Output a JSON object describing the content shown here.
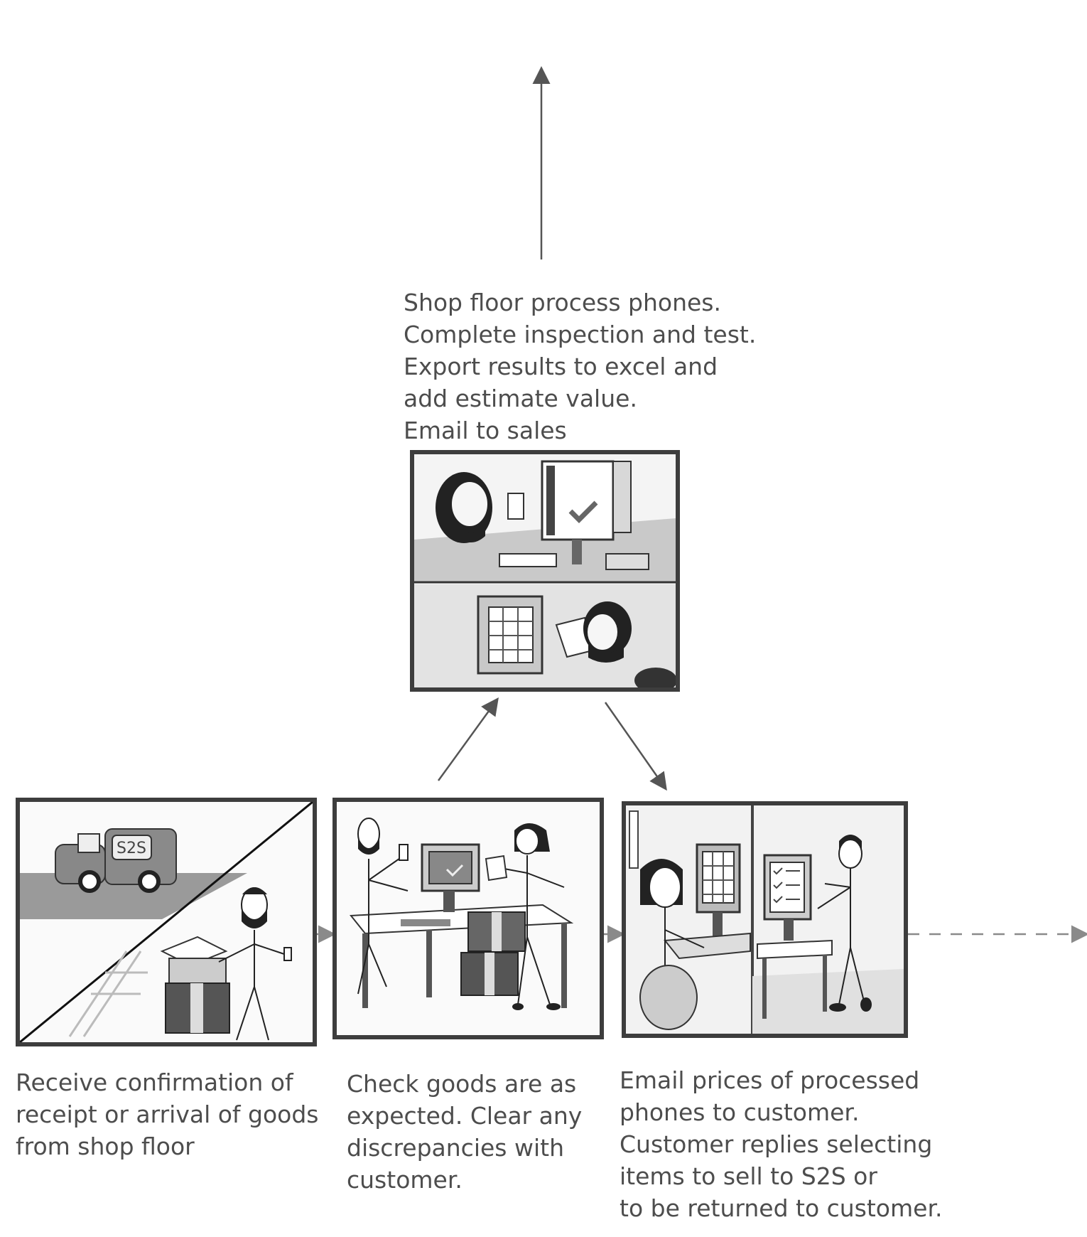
{
  "steps": [
    {
      "id": "receive",
      "caption_lines": [
        "Receive confirmation of",
        "receipt or arrival of goods",
        "from shop floor"
      ],
      "van_logo": "S2S"
    },
    {
      "id": "check",
      "caption_lines": [
        "Check goods are as",
        "expected. Clear any",
        "discrepancies with",
        "customer."
      ]
    },
    {
      "id": "process",
      "caption_lines": [
        "Shop floor process phones.",
        "Complete inspection and test.",
        "Export results to excel and",
        "add estimate value.",
        "Email to sales"
      ]
    },
    {
      "id": "email-prices",
      "caption_lines": [
        "Email prices of processed",
        "phones to customer.",
        "Customer replies selecting",
        "items to sell to S2S or",
        "to be returned to customer."
      ]
    }
  ],
  "colors": {
    "ink": "#3d3d3d",
    "text": "#4d4d4d",
    "arrow": "#555555",
    "dashed_arrow": "#8a8a8a"
  }
}
